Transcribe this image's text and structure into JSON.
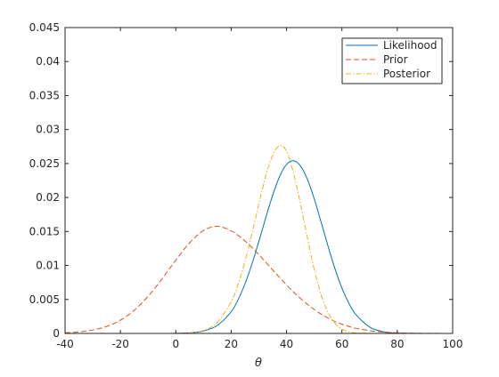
{
  "chart_data": {
    "type": "line",
    "title": "",
    "xlabel": "θ",
    "ylabel": "",
    "xlim": [
      -40,
      100
    ],
    "ylim": [
      0,
      0.045
    ],
    "xticks": [
      -40,
      -20,
      0,
      20,
      40,
      60,
      80,
      100
    ],
    "xtick_labels": [
      "-40",
      "-20",
      "0",
      "20",
      "40",
      "60",
      "80",
      "100"
    ],
    "yticks": [
      0,
      0.005,
      0.01,
      0.015,
      0.02,
      0.025,
      0.03,
      0.035,
      0.04,
      0.045
    ],
    "ytick_labels": [
      "0",
      "0.005",
      "0.01",
      "0.015",
      "0.02",
      "0.025",
      "0.03",
      "0.035",
      "0.04",
      "0.045"
    ],
    "grid": false,
    "legend_position": "top-right",
    "x": [
      -40,
      -35,
      -30,
      -25,
      -20,
      -15,
      -10,
      -5,
      0,
      5,
      10,
      15,
      20,
      22.5,
      25,
      27.5,
      30,
      32.5,
      35,
      37.5,
      40,
      42.5,
      45,
      47.5,
      50,
      52.5,
      55,
      57.5,
      60,
      62.5,
      65,
      70,
      75,
      80,
      85,
      90,
      95,
      100
    ],
    "series": [
      {
        "name": "Likelihood",
        "color": "#0072BD",
        "dash": "solid",
        "values": [
          0,
          0,
          0,
          0,
          0,
          0,
          0,
          0,
          2e-05,
          9e-05,
          0.00036,
          0.00118,
          0.00319,
          0.00496,
          0.00731,
          0.0102,
          0.01353,
          0.01703,
          0.02035,
          0.02309,
          0.02486,
          0.02541,
          0.02467,
          0.0227,
          0.0198,
          0.01636,
          0.01282,
          0.00951,
          0.00668,
          0.00445,
          0.0028,
          0.00094,
          0.00025,
          5e-05,
          1e-05,
          0,
          0,
          0
        ]
      },
      {
        "name": "Prior",
        "color": "#D95319",
        "dash": "dashed",
        "values": [
          9e-05,
          0.00022,
          0.0005,
          0.00103,
          0.00195,
          0.00341,
          0.00546,
          0.00801,
          0.01079,
          0.01333,
          0.01513,
          0.01577,
          0.0151,
          0.01443,
          0.0136,
          0.01264,
          0.01159,
          0.01048,
          0.00935,
          0.00823,
          0.00714,
          0.00611,
          0.00516,
          0.0043,
          0.00352,
          0.00284,
          0.00226,
          0.00176,
          0.00136,
          0.00103,
          0.00076,
          0.0004,
          0.0002,
          9e-05,
          4e-05,
          2e-05,
          1e-05,
          0
        ]
      },
      {
        "name": "Posterior",
        "color": "#EDB120",
        "dash": "dashdot",
        "values": [
          0,
          0,
          0,
          0,
          0,
          0,
          0,
          0,
          2e-05,
          0.0001,
          0.00045,
          0.00162,
          0.00464,
          0.00722,
          0.01062,
          0.0147,
          0.01906,
          0.02315,
          0.02623,
          0.02762,
          0.02681,
          0.02362,
          0.01914,
          0.01414,
          0.00941,
          0.00568,
          0.00308,
          0.00148,
          0.00063,
          0.00024,
          8e-05,
          1e-05,
          0,
          0,
          0,
          0,
          0,
          0
        ]
      }
    ]
  }
}
